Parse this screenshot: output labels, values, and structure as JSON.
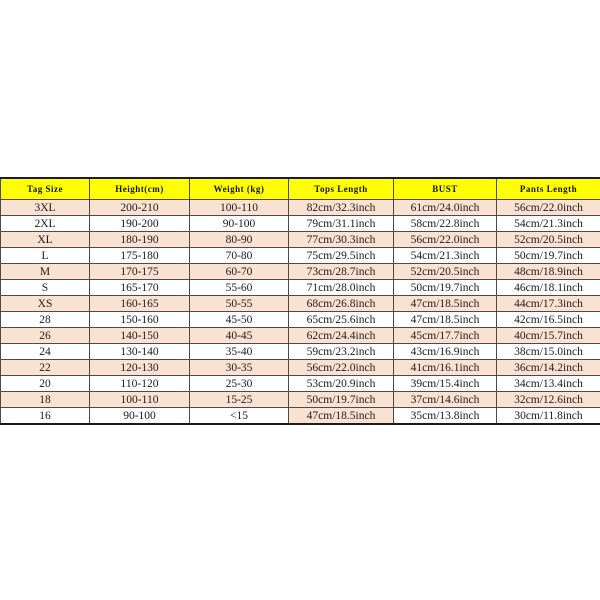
{
  "chart_data": {
    "type": "table",
    "title": "",
    "columns": [
      "Tag Size",
      "Height(cm)",
      "Weight (kg)",
      "Tops Length",
      "BUST",
      "Pants Length"
    ],
    "rows": [
      [
        "3XL",
        "200-210",
        "100-110",
        "82cm/32.3inch",
        "61cm/24.0inch",
        "56cm/22.0inch"
      ],
      [
        "2XL",
        "190-200",
        "90-100",
        "79cm/31.1inch",
        "58cm/22.8inch",
        "54cm/21.3inch"
      ],
      [
        "XL",
        "180-190",
        "80-90",
        "77cm/30.3inch",
        "56cm/22.0inch",
        "52cm/20.5inch"
      ],
      [
        "L",
        "175-180",
        "70-80",
        "75cm/29.5inch",
        "54cm/21.3inch",
        "50cm/19.7inch"
      ],
      [
        "M",
        "170-175",
        "60-70",
        "73cm/28.7inch",
        "52cm/20.5inch",
        "48cm/18.9inch"
      ],
      [
        "S",
        "165-170",
        "55-60",
        "71cm/28.0inch",
        "50cm/19.7inch",
        "46cm/18.1inch"
      ],
      [
        "XS",
        "160-165",
        "50-55",
        "68cm/26.8inch",
        "47cm/18.5inch",
        "44cm/17.3inch"
      ],
      [
        "28",
        "150-160",
        "45-50",
        "65cm/25.6inch",
        "47cm/18.5inch",
        "42cm/16.5inch"
      ],
      [
        "26",
        "140-150",
        "40-45",
        "62cm/24.4inch",
        "45cm/17.7inch",
        "40cm/15.7inch"
      ],
      [
        "24",
        "130-140",
        "35-40",
        "59cm/23.2inch",
        "43cm/16.9inch",
        "38cm/15.0inch"
      ],
      [
        "22",
        "120-130",
        "30-35",
        "56cm/22.0inch",
        "41cm/16.1inch",
        "36cm/14.2inch"
      ],
      [
        "20",
        "110-120",
        "25-30",
        "53cm/20.9inch",
        "39cm/15.4inch",
        "34cm/13.4inch"
      ],
      [
        "18",
        "100-110",
        "15-25",
        "50cm/19.7inch",
        "37cm/14.6inch",
        "32cm/12.6inch"
      ],
      [
        "16",
        "90-100",
        "<15",
        "47cm/18.5inch",
        "35cm/13.8inch",
        "30cm/11.8inch"
      ]
    ],
    "striping": {
      "stripe_row_indices": [
        0,
        2,
        4,
        6,
        8,
        10,
        12
      ],
      "extra_tinted_cells": [
        {
          "row": 13,
          "col": 3
        }
      ]
    },
    "colors": {
      "header_bg": "#ffff00",
      "stripe_bg": "#f9e2d2",
      "plain_bg": "#ffffff",
      "text": "#1b1b1b",
      "grid_line": "#4b4b4b"
    },
    "layout_hints": {
      "grid": true,
      "legend": "none"
    }
  }
}
